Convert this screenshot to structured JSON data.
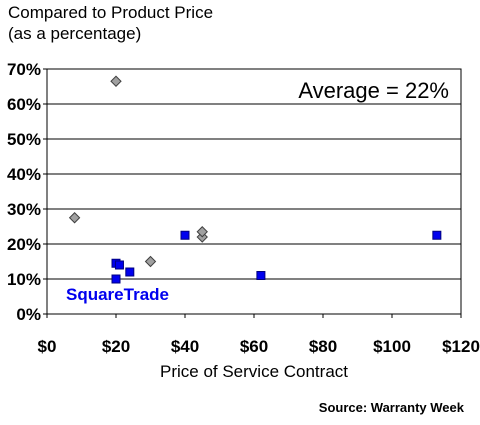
{
  "chart_data": {
    "type": "scatter",
    "title_lines": [
      "Compared to Product Price",
      "(as a percentage)"
    ],
    "xlabel": "Price of Service Contract",
    "ylabel": "",
    "xlim": [
      0,
      120
    ],
    "ylim": [
      0,
      70
    ],
    "x_ticks": [
      0,
      20,
      40,
      60,
      80,
      100,
      120
    ],
    "x_tick_labels": [
      "$0",
      "$20",
      "$40",
      "$60",
      "$80",
      "$100",
      "$120"
    ],
    "y_ticks": [
      0,
      10,
      20,
      30,
      40,
      50,
      60,
      70
    ],
    "y_tick_labels": [
      "0%",
      "10%",
      "20%",
      "30%",
      "40%",
      "50%",
      "60%",
      "70%"
    ],
    "grid": "horizontal",
    "series": [
      {
        "marker": "diamond",
        "color": "#a0a0a0",
        "points": [
          {
            "x": 8,
            "y": 27.5
          },
          {
            "x": 20,
            "y": 66.5
          },
          {
            "x": 30,
            "y": 15
          },
          {
            "x": 45,
            "y": 22
          },
          {
            "x": 45,
            "y": 23.5
          }
        ]
      },
      {
        "name": "SquareTrade",
        "marker": "square",
        "color": "#0000ee",
        "points": [
          {
            "x": 20,
            "y": 10
          },
          {
            "x": 20,
            "y": 14.5
          },
          {
            "x": 21,
            "y": 14
          },
          {
            "x": 24,
            "y": 12
          },
          {
            "x": 40,
            "y": 22.5
          },
          {
            "x": 62,
            "y": 11
          },
          {
            "x": 113,
            "y": 22.5
          }
        ]
      }
    ],
    "annotation": "Average = 22%",
    "series_label": "SquareTrade",
    "source": "Source: Warranty Week"
  }
}
